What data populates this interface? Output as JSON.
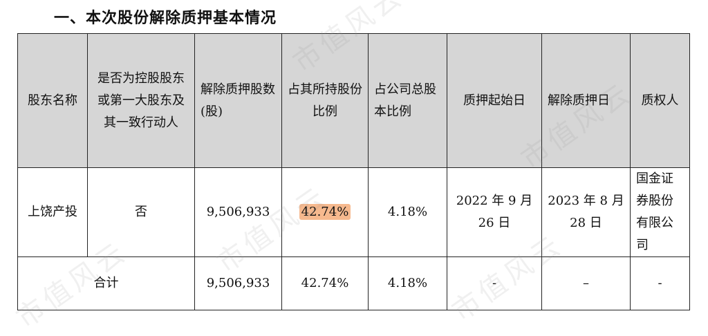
{
  "section_title": "一、本次股份解除质押基本情况",
  "watermark_text": "市值风云",
  "table": {
    "headers": [
      "股东名称",
      "是否为控股股东或第一大股东及其一致行动人",
      "解除质押股数(股)",
      "占其所持股份比例",
      "占公司总股本比例",
      "质押起始日",
      "解除质押日",
      "质权人"
    ],
    "rows": [
      {
        "holder": "上饶产投",
        "is_controlling": "否",
        "shares": "9,506,933",
        "pct_held": "42.74%",
        "pct_total": "4.18%",
        "start_date": "2022 年 9 月 26 日",
        "release_date": "2023 年 8 月 28 日",
        "pledgee": "国金证券股份有限公司"
      }
    ],
    "total": {
      "label": "合计",
      "shares": "9,506,933",
      "pct_held": "42.74%",
      "pct_total": "4.18%",
      "start_date": "-",
      "release_date": "–",
      "pledgee": "-"
    }
  },
  "colors": {
    "header_bg": "#d6d6d6",
    "highlight": "#f6b98e"
  }
}
